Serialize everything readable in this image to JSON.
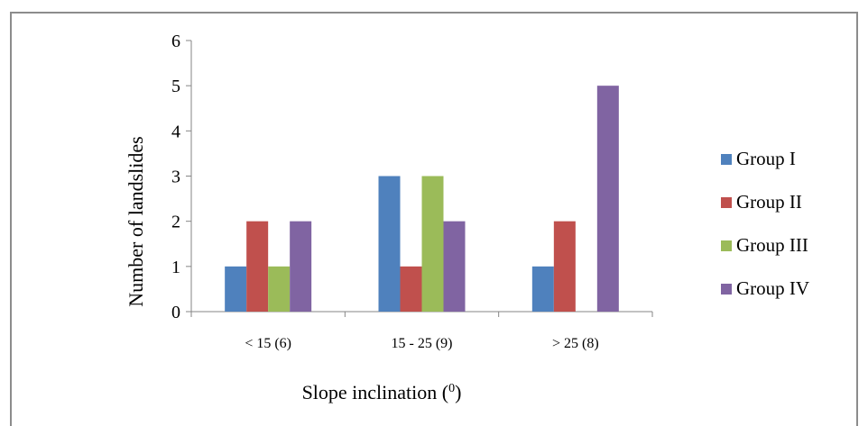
{
  "chart_data": {
    "type": "bar",
    "title": "",
    "xlabel": "Slope inclination (⁰)",
    "xlabel_main": "Slope inclination (",
    "xlabel_sup": "0",
    "xlabel_close": ")",
    "ylabel": "Number of landslides",
    "ylim": [
      0,
      6
    ],
    "yticks": [
      "0",
      "1",
      "2",
      "3",
      "4",
      "5",
      "6"
    ],
    "categories": [
      "< 15 (6)",
      "15 - 25 (9)",
      "> 25 (8)"
    ],
    "series": [
      {
        "name": "Group I",
        "color": "#4f81bd",
        "values": [
          1,
          3,
          1
        ]
      },
      {
        "name": "Group II",
        "color": "#c0504d",
        "values": [
          2,
          1,
          2
        ]
      },
      {
        "name": "Group III",
        "color": "#9bbb59",
        "values": [
          1,
          3,
          0
        ]
      },
      {
        "name": "Group IV",
        "color": "#8064a2",
        "values": [
          2,
          2,
          5
        ]
      }
    ],
    "grid": false,
    "legend": "right"
  }
}
